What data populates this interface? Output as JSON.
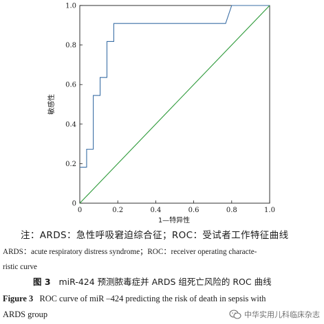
{
  "chart_data": {
    "type": "line",
    "title": "",
    "xlabel": "1—特异性",
    "ylabel": "敏感性",
    "xlim": [
      0,
      1
    ],
    "ylim": [
      0,
      1
    ],
    "x_ticks": [
      "0",
      "0.2",
      "0.4",
      "0.6",
      "0.8",
      "1.0"
    ],
    "y_ticks": [
      "0",
      "0.2",
      "0.4",
      "0.6",
      "0.8",
      "1.0"
    ],
    "tick_values": [
      0,
      0.2,
      0.4,
      0.6,
      0.8,
      1.0
    ],
    "series": [
      {
        "color": "#3a6ea5",
        "points": [
          [
            0,
            0.182
          ],
          [
            0.036,
            0.182
          ],
          [
            0.036,
            0.273
          ],
          [
            0.071,
            0.273
          ],
          [
            0.071,
            0.545
          ],
          [
            0.107,
            0.545
          ],
          [
            0.107,
            0.636
          ],
          [
            0.143,
            0.636
          ],
          [
            0.143,
            0.818
          ],
          [
            0.179,
            0.818
          ],
          [
            0.179,
            0.909
          ],
          [
            0.768,
            0.909
          ],
          [
            0.8,
            1.0
          ],
          [
            1.0,
            1.0
          ]
        ]
      },
      {
        "color": "#2e9a3a",
        "points": [
          [
            0,
            0
          ],
          [
            1,
            1
          ]
        ]
      }
    ],
    "grid": false,
    "legend": "none"
  },
  "notes": {
    "line1": "注：ARDS：急性呼吸窘迫综合征；ROC：受试者工作特征曲线",
    "line2": "ARDS：acute respiratory distress syndrome；ROC：receiver operating characte-",
    "line3": "ristic curve"
  },
  "caption": {
    "cn_label": "图 3",
    "cn_text": "miR-424 预测脓毒症并 ARDS 组死亡风险的 ROC 曲线",
    "en_label": "Figure 3",
    "en_line1": "ROC curve of miR –424 predicting the risk of death in sepsis with",
    "en_line2": "ARDS group"
  },
  "watermark": {
    "text": "中华实用儿科临床杂志",
    "icon": "wechat-icon"
  }
}
